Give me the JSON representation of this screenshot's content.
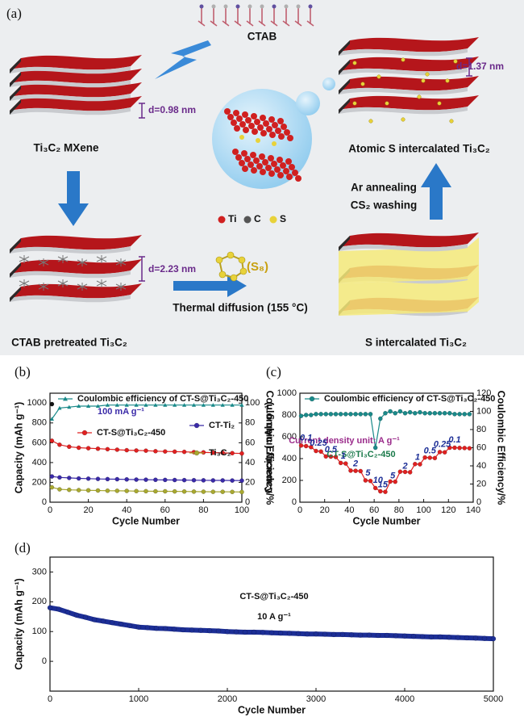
{
  "panel_a": {
    "label": "(a)",
    "ctab": "CTAB",
    "d_mxene": "d=0.98 nm",
    "mxene": "Ti₃C₂ MXene",
    "d_atomic": "d=1.37 nm",
    "atomic": "Atomic S intercalated Ti₃C₂",
    "step": [
      "Ar annealing",
      "CS₂ washing"
    ],
    "legend": [
      "Ti",
      "C",
      "S"
    ],
    "d_ctab": "d=2.23 nm",
    "s8": "(S₈)",
    "thermal": "Thermal diffusion (155 °C)",
    "ctab_pretreated": "CTAB pretreated Ti₃C₂",
    "s_intercalated": "S intercalated Ti₃C₂"
  },
  "chart_data": [
    {
      "type": "line",
      "label": "(b)",
      "xlabel": "Cycle Number",
      "ylabel": "Capacity (mAh g⁻¹)",
      "y2label": "Coulombic Efficiency/%",
      "xlim": [
        0,
        100
      ],
      "xticks": [
        0,
        20,
        40,
        60,
        80,
        100
      ],
      "ylim": [
        0,
        1100
      ],
      "yticks": [
        0,
        200,
        400,
        600,
        800,
        1000
      ],
      "y2lim": [
        0,
        110
      ],
      "y2ticks": [
        0,
        20,
        40,
        60,
        80,
        100
      ],
      "annotations": [
        "100 mA g⁻¹"
      ],
      "series": [
        {
          "name": "Coulombic efficiency of CT-S@Ti₃C₂-450",
          "color": "#1a8a8a",
          "marker": "triangle",
          "axis": "y2",
          "x": [
            1,
            5,
            10,
            15,
            20,
            25,
            30,
            35,
            40,
            45,
            50,
            55,
            60,
            65,
            70,
            75,
            80,
            85,
            90,
            95,
            100
          ],
          "values": [
            84,
            95,
            96,
            97,
            97,
            97,
            98,
            98,
            98,
            98,
            98,
            98,
            98,
            98,
            98,
            98,
            98,
            98,
            98,
            98,
            98
          ]
        },
        {
          "color": "#111111",
          "marker": "circle",
          "x": [
            1
          ],
          "values": [
            990
          ]
        },
        {
          "name": "CT-S@Ti₃C₂-450",
          "color": "#e02020",
          "marker": "circle",
          "x": [
            1,
            5,
            10,
            15,
            20,
            25,
            30,
            35,
            40,
            45,
            50,
            55,
            60,
            65,
            70,
            75,
            80,
            85,
            90,
            95,
            100
          ],
          "values": [
            620,
            580,
            560,
            550,
            545,
            540,
            535,
            530,
            525,
            522,
            520,
            515,
            512,
            510,
            508,
            505,
            503,
            500,
            498,
            495,
            492
          ]
        },
        {
          "name": "CT-Ti₂",
          "color": "#3a2aa8",
          "marker": "circle",
          "x": [
            1,
            5,
            10,
            15,
            20,
            25,
            30,
            35,
            40,
            45,
            50,
            55,
            60,
            65,
            70,
            75,
            80,
            85,
            90,
            95,
            100
          ],
          "values": [
            260,
            250,
            245,
            240,
            238,
            235,
            233,
            232,
            230,
            228,
            227,
            226,
            225,
            224,
            223,
            222,
            221,
            220,
            220,
            219,
            218
          ]
        },
        {
          "name": "Ti₃C₂",
          "color": "#a8a830",
          "marker": "circle",
          "x": [
            1,
            5,
            10,
            15,
            20,
            25,
            30,
            35,
            40,
            45,
            50,
            55,
            60,
            65,
            70,
            75,
            80,
            85,
            90,
            95,
            100
          ],
          "values": [
            150,
            130,
            125,
            122,
            120,
            118,
            116,
            115,
            114,
            112,
            111,
            110,
            110,
            109,
            108,
            107,
            106,
            105,
            105,
            104,
            103
          ]
        }
      ]
    },
    {
      "type": "line",
      "label": "(c)",
      "xlabel": "Cycle Number",
      "ylabel": "Capacity (mAh g⁻¹)",
      "y2label": "Coulombic Efficiency/%",
      "xlim": [
        0,
        140
      ],
      "xticks": [
        0,
        20,
        40,
        60,
        80,
        100,
        120,
        140
      ],
      "ylim": [
        0,
        1000
      ],
      "yticks": [
        0,
        200,
        400,
        600,
        800,
        1000
      ],
      "y2lim": [
        0,
        120
      ],
      "y2ticks": [
        0,
        20,
        40,
        60,
        80,
        100,
        120
      ],
      "annotations": [
        "Current density unit: A g⁻¹",
        "CT-S@Ti₃C₂-450"
      ],
      "rate_labels": [
        "0.1",
        "0.25",
        "0.5",
        "1",
        "2",
        "5",
        "10",
        "15",
        "5",
        "2",
        "1",
        "0.5",
        "0.25",
        "0.1"
      ],
      "series": [
        {
          "name": "Coulombic efficiency of CT-S@Ti₃C₂-450",
          "color": "#1a8a8a",
          "marker": "circle",
          "axis": "y2",
          "x": [
            1,
            5,
            9,
            13,
            17,
            21,
            25,
            29,
            33,
            37,
            41,
            45,
            49,
            53,
            57,
            61,
            65,
            69,
            73,
            77,
            81,
            85,
            89,
            93,
            97,
            101,
            105,
            109,
            113,
            117,
            121,
            125,
            129,
            133,
            137
          ],
          "values": [
            95,
            96,
            96,
            97,
            97,
            97,
            97,
            97,
            97,
            97,
            97,
            97,
            97,
            97,
            97,
            60,
            92,
            98,
            100,
            98,
            100,
            98,
            99,
            98,
            99,
            98,
            98,
            98,
            98,
            98,
            98,
            97,
            97,
            97,
            97
          ]
        },
        {
          "color": "#e02020",
          "marker": "circle",
          "x": [
            1,
            5,
            9,
            13,
            17,
            21,
            25,
            29,
            33,
            37,
            41,
            45,
            49,
            53,
            57,
            61,
            65,
            69,
            73,
            77,
            81,
            85,
            89,
            93,
            97,
            101,
            105,
            109,
            113,
            117,
            121,
            125,
            129,
            133,
            137
          ],
          "values": [
            520,
            515,
            505,
            470,
            465,
            420,
            418,
            415,
            360,
            355,
            290,
            288,
            285,
            200,
            195,
            130,
            100,
            95,
            190,
            188,
            280,
            278,
            275,
            350,
            348,
            410,
            408,
            405,
            460,
            458,
            500,
            500,
            498,
            497,
            495
          ]
        }
      ]
    },
    {
      "type": "line",
      "label": "(d)",
      "xlabel": "Cycle Number",
      "ylabel": "Capacity (mAh g⁻¹)",
      "xlim": [
        0,
        5000
      ],
      "xticks": [
        0,
        1000,
        2000,
        3000,
        4000,
        5000
      ],
      "ylim": [
        -100,
        350
      ],
      "yticks": [
        0,
        100,
        200,
        300
      ],
      "annotations": [
        "CT-S@Ti₃C₂-450",
        "10 A g⁻¹"
      ],
      "series": [
        {
          "color": "#1c2e96",
          "marker": "circle",
          "x": [
            0,
            100,
            200,
            300,
            400,
            500,
            600,
            700,
            800,
            900,
            1000,
            1100,
            1200,
            1300,
            1400,
            1500,
            1600,
            1700,
            1800,
            1900,
            2000,
            2100,
            2200,
            2300,
            2400,
            2500,
            2600,
            2700,
            2800,
            2900,
            3000,
            3100,
            3200,
            3300,
            3400,
            3500,
            3600,
            3700,
            3800,
            3900,
            4000,
            4100,
            4200,
            4300,
            4400,
            4500,
            4600,
            4700,
            4800,
            4900,
            5000
          ],
          "values": [
            180,
            175,
            165,
            155,
            148,
            140,
            135,
            130,
            125,
            120,
            115,
            113,
            111,
            110,
            108,
            106,
            105,
            104,
            103,
            102,
            100,
            99,
            98,
            98,
            97,
            96,
            95,
            94,
            93,
            92,
            92,
            91,
            90,
            90,
            89,
            88,
            88,
            87,
            87,
            86,
            85,
            84,
            83,
            82,
            82,
            81,
            80,
            79,
            78,
            77,
            76
          ]
        }
      ]
    }
  ]
}
